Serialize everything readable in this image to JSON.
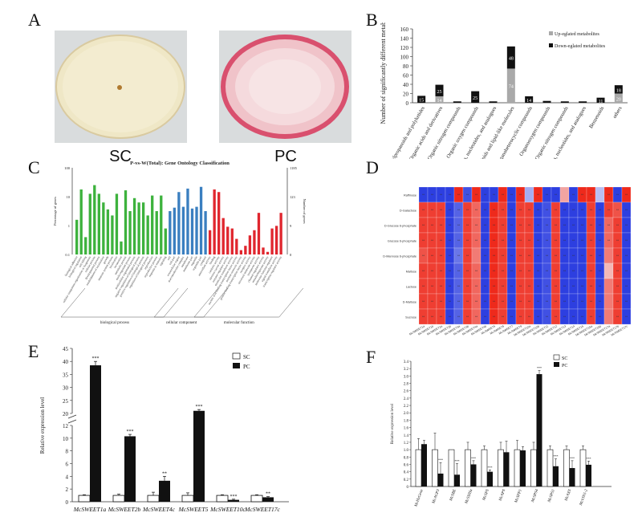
{
  "panels": {
    "a": "A",
    "b": "B",
    "c": "C",
    "d": "D",
    "e": "E",
    "f": "F"
  },
  "photos": {
    "sc_label": "SC",
    "pc_label": "PC"
  },
  "colors": {
    "green": "#3db23d",
    "blue": "#3a7fc0",
    "red": "#e0262e",
    "heat_red": "#ee2a1c",
    "heat_blue": "#2d3fe0",
    "black": "#111111",
    "gray": "#a9a9a9"
  },
  "chart_data": [
    {
      "id": "B",
      "type": "bar",
      "ylabel": "Number of significantly different metabolites",
      "ylim": [
        0,
        160
      ],
      "yticks": [
        "0",
        "20",
        "40",
        "60",
        "80",
        "100",
        "120",
        "140",
        "160"
      ],
      "categories": [
        "Phenylpropanoids and polyketides",
        "Organic acids and derivatives",
        "Organic nitrogen compounds",
        "Organic oxygen compounds",
        "Nucleosides, nucleotides, and analogues",
        "Lipids and lipid-like molecules",
        "Organoheterocyclic compounds",
        "Organooxygen compounds",
        "Organic nitrogen compounds",
        "Nucleosides, nucleotides, and analogues",
        "Benzenoids",
        "others"
      ],
      "series": [
        {
          "name": "Up-eglated metabolites",
          "values": [
            0,
            14,
            0,
            0,
            0,
            74,
            0,
            0,
            0,
            0,
            0,
            20
          ]
        },
        {
          "name": "Down-eglated metabolites",
          "values": [
            15,
            25,
            3,
            25,
            3,
            48,
            14,
            4,
            3,
            3,
            11,
            18
          ]
        }
      ],
      "labels_up": [
        "",
        "14",
        "",
        "",
        "",
        "74",
        "",
        "",
        "",
        "",
        "",
        "20"
      ],
      "labels_down": [
        "15",
        "25",
        "",
        "25",
        "",
        "48",
        "14",
        "",
        "",
        "",
        "11",
        "18"
      ]
    },
    {
      "id": "C",
      "type": "bar",
      "title": "P-vs-W(Total): Gene Ontology Classification",
      "ylabel_left": "Percentage of genes",
      "ylabel_right": "Number of genes",
      "yticks_left": [
        "0.1",
        "1",
        "10",
        "100"
      ],
      "yticks_right": [
        "0",
        "9",
        "123",
        "1185"
      ],
      "groups": [
        "biological process",
        "cellular component",
        "molecular function"
      ],
      "values": [
        0.4,
        0.75,
        0.2,
        0.7,
        0.8,
        0.7,
        0.6,
        0.52,
        0.45,
        0.7,
        0.15,
        0.74,
        0.5,
        0.65,
        0.6,
        0.6,
        0.45,
        0.68,
        0.5,
        0.68,
        0.3,
        0.5,
        0.54,
        0.72,
        0.55,
        0.76,
        0.53,
        0.55,
        0.78,
        0.5,
        0.28,
        0.75,
        0.72,
        0.42,
        0.32,
        0.3,
        0.18,
        0.05,
        0.1,
        0.22,
        0.28,
        0.48,
        0.08,
        0.03,
        0.3,
        0.33,
        0.48
      ],
      "group_of": [
        0,
        0,
        0,
        0,
        0,
        0,
        0,
        0,
        0,
        0,
        0,
        0,
        0,
        0,
        0,
        0,
        0,
        0,
        0,
        0,
        0,
        1,
        1,
        1,
        1,
        1,
        1,
        1,
        1,
        1,
        2,
        2,
        2,
        2,
        2,
        2,
        2,
        2,
        2,
        2,
        2,
        2,
        2,
        2,
        2,
        2,
        2
      ],
      "terms": [
        "biological adhesion",
        "biological regulation",
        "cell killing",
        "cellular component organization or biogenesis",
        "cellular process",
        "developmental process",
        "establishment of localization",
        "growth",
        "immune system process",
        "localization",
        "locomotion",
        "metabolic process",
        "multi-organism process",
        "multicellular organismal process",
        "negative regulation of biological process",
        "positive regulation of biological process",
        "regulation of biological process",
        "reproduction",
        "reproductive process",
        "response to stimulus",
        "signaling",
        "cell",
        "cell part",
        "extracellular region",
        "macromolecular complex",
        "membrane",
        "membrane part",
        "organelle",
        "organelle part",
        "symplast",
        "antioxidant activity",
        "binding",
        "catalytic activity",
        "electron carrier activity",
        "enzyme regulator activity",
        "molecular transducer activity",
        "nucleic acid binding transcription factor activity",
        "nutrient reservoir activity",
        "protein binding transcription factor activity",
        "receptor activity",
        "structural molecule activity",
        "transporter activity",
        "channel regulator activity",
        "metallochaperone activity",
        "molecular function regulator",
        "signal transducer activity",
        "transcription regulator activity"
      ]
    },
    {
      "id": "D",
      "type": "heatmap",
      "rows": [
        "Raffinose",
        "D-Galactose",
        "D-Glucose 6-phosphate",
        "Glucose 6-phosphate",
        "D-Mannose 6-phosphate",
        "Maltose",
        "Lactose",
        "D-Maltose",
        "Sucrose"
      ],
      "columns": [
        "McSWEET1a",
        "McSWEET1b",
        "McSWEET2a",
        "McSWEET2b",
        "McSWEET3a",
        "McSWEET3b",
        "McSWEET4a",
        "McSWEET4b",
        "McSWEET5",
        "McSWEET6",
        "McSWEET7",
        "McSWEET9",
        "McSWEET10a",
        "McSWEET10b",
        "McSWEET11",
        "McSWEET12",
        "McSWEET13",
        "McSWEET14",
        "McSWEET15",
        "McSWEET16a",
        "McSWEET16b",
        "McSWEET17a",
        "McSWEET17b",
        "McSWEET17c"
      ],
      "matrix": [
        [
          -1,
          -1,
          -1,
          -1,
          1,
          -0.9,
          1,
          -1,
          -1,
          1,
          -1,
          1,
          -0.4,
          1,
          -1,
          -1,
          0.4,
          -1,
          1,
          1,
          -0.3,
          1,
          -1,
          1
        ],
        [
          0.9,
          0.9,
          0.9,
          -1,
          -0.8,
          0.9,
          0.7,
          -1,
          1,
          0.9,
          -1,
          0.9,
          0.9,
          -1,
          -0.9,
          0.9,
          -1,
          -1,
          -1,
          0.9,
          -1,
          0.9,
          0.8,
          -1
        ],
        [
          0.9,
          0.9,
          0.9,
          -1,
          -0.8,
          0.9,
          0.7,
          -1,
          1,
          0.9,
          -1,
          0.9,
          0.9,
          -1,
          -0.9,
          0.9,
          -1,
          -1,
          -1,
          0.9,
          -1,
          0.7,
          0.9,
          -1
        ],
        [
          0.9,
          0.9,
          0.9,
          -1,
          -0.8,
          0.9,
          0.7,
          -1,
          1,
          0.9,
          -1,
          0.9,
          0.9,
          -1,
          -0.9,
          0.9,
          -1,
          -1,
          -1,
          0.9,
          -1,
          0.7,
          0.9,
          -1
        ],
        [
          0.8,
          0.9,
          0.9,
          -1,
          -0.7,
          0.9,
          0.6,
          -1,
          1,
          0.9,
          -1,
          0.9,
          0.9,
          -1,
          -0.9,
          0.9,
          -1,
          -1,
          -1,
          0.9,
          -1,
          0.6,
          0.9,
          -1
        ],
        [
          0.9,
          0.9,
          0.9,
          -1,
          -0.8,
          0.9,
          0.7,
          -1,
          1,
          0.9,
          -1,
          0.9,
          0.9,
          -1,
          -0.9,
          0.9,
          -1,
          -1,
          -1,
          0.9,
          -1,
          0.3,
          0.9,
          -1
        ],
        [
          0.9,
          0.9,
          0.9,
          -1,
          -0.8,
          0.9,
          0.7,
          -1,
          1,
          0.9,
          -1,
          0.9,
          0.9,
          -1,
          -0.9,
          0.9,
          -1,
          -1,
          -1,
          0.9,
          -1,
          0.6,
          0.9,
          -1
        ],
        [
          0.9,
          0.9,
          0.9,
          -1,
          -0.8,
          0.9,
          0.7,
          -1,
          1,
          0.9,
          -1,
          0.9,
          0.9,
          -1,
          -0.9,
          0.9,
          -1,
          -1,
          -1,
          0.9,
          -1,
          0.6,
          0.9,
          -1
        ],
        [
          0.9,
          0.9,
          0.9,
          -1,
          -0.8,
          0.9,
          0.7,
          -1,
          1,
          0.9,
          -1,
          0.9,
          0.9,
          -1,
          -0.9,
          0.9,
          -1,
          -1,
          -1,
          0.9,
          -1,
          0.6,
          0.9,
          -1
        ]
      ],
      "legend_title": "Correlation",
      "legend_ticks": [
        "1.00",
        "0.75",
        "0.50",
        "0.25",
        "0.00",
        "-0.25",
        "-0.50",
        "-0.75",
        "-1.00"
      ]
    },
    {
      "id": "E",
      "type": "bar",
      "ylabel": "Relative expression level",
      "categories": [
        "McSWEET1a",
        "McSWEET2b",
        "McSWEET4c",
        "McSWEET5",
        "McSWEET10c",
        "McSWEET17c"
      ],
      "series": [
        {
          "name": "SC",
          "values": [
            1,
            1,
            1,
            1,
            1,
            1
          ],
          "err": [
            0.1,
            0.2,
            0.5,
            0.4,
            0.1,
            0.1
          ]
        },
        {
          "name": "PC",
          "values": [
            38.5,
            10.3,
            3.3,
            21,
            0.3,
            0.7
          ],
          "err": [
            1.5,
            0.3,
            0.7,
            0.5,
            0.1,
            0.1
          ]
        }
      ],
      "signif": [
        "***",
        "***",
        "**",
        "***",
        "***",
        "**"
      ],
      "yticks_low": [
        "0",
        "2",
        "4",
        "6",
        "8",
        "10",
        "12"
      ],
      "yticks_high": [
        "20",
        "25",
        "30",
        "35",
        "40",
        "45"
      ]
    },
    {
      "id": "F",
      "type": "bar",
      "ylabel": "Relative expression level",
      "ylim": [
        0,
        3.4
      ],
      "yticks": [
        "0",
        "0.2",
        "0.4",
        "0.6",
        "0.8",
        "1.0",
        "1.2",
        "1.4",
        "1.6",
        "1.8",
        "2.0",
        "2.2",
        "2.4",
        "2.6",
        "2.8",
        "3.0",
        "3.2",
        "3.4"
      ],
      "categories": [
        "McHxGene",
        "McAGP3",
        "McSBE",
        "McSSIIIa",
        "McSPS",
        "McAPS",
        "McSPP1",
        "McSPS4",
        "McSPS1",
        "McAXS",
        "McVIN1-2"
      ],
      "series": [
        {
          "name": "SC",
          "values": [
            1,
            1,
            1,
            1,
            1,
            1,
            1,
            1,
            1,
            1,
            1
          ],
          "err": [
            0.3,
            0.45,
            0,
            0.2,
            0.1,
            0.2,
            0.25,
            0.2,
            0.1,
            0.1,
            0.1
          ]
        },
        {
          "name": "PC",
          "values": [
            1.15,
            0.35,
            0.32,
            0.6,
            0.4,
            0.93,
            0.98,
            3.05,
            0.55,
            0.5,
            0.59
          ],
          "err": [
            0.1,
            0.3,
            0.3,
            0.1,
            0.05,
            0.3,
            0.1,
            0.1,
            0.2,
            0.2,
            0.1
          ]
        }
      ],
      "signif": [
        "",
        "***",
        "***",
        "***",
        "***",
        "",
        "",
        "***",
        "***",
        "***",
        "***"
      ]
    }
  ]
}
